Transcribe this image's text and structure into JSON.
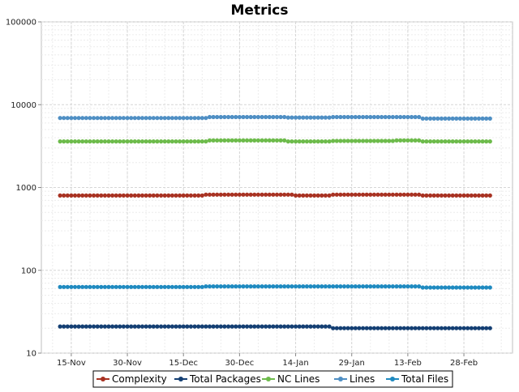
{
  "chart_data": {
    "type": "line",
    "title": "Metrics",
    "xlabel": "",
    "ylabel": "",
    "y_scale": "log",
    "ylim": [
      10,
      100000
    ],
    "y_ticks": [
      "10",
      "100",
      "1000",
      "10000",
      "100000"
    ],
    "xlim": [
      "2010-11-07",
      "2011-03-13"
    ],
    "x_ticks": [
      {
        "date": "2010-11-15",
        "label": "15-Nov"
      },
      {
        "date": "2010-11-30",
        "label": "30-Nov"
      },
      {
        "date": "2010-12-15",
        "label": "15-Dec"
      },
      {
        "date": "2010-12-30",
        "label": "30-Dec"
      },
      {
        "date": "2011-01-14",
        "label": "14-Jan"
      },
      {
        "date": "2011-01-29",
        "label": "29-Jan"
      },
      {
        "date": "2011-02-13",
        "label": "13-Feb"
      },
      {
        "date": "2011-02-28",
        "label": "28-Feb"
      }
    ],
    "grid": true,
    "legend_position": "bottom",
    "series": [
      {
        "name": "Complexity",
        "color": "#a83222",
        "points": [
          [
            "2010-11-12",
            800
          ],
          [
            "2010-12-15",
            800
          ],
          [
            "2010-12-21",
            820
          ],
          [
            "2011-01-14",
            800
          ],
          [
            "2011-01-24",
            820
          ],
          [
            "2011-02-10",
            820
          ],
          [
            "2011-02-17",
            800
          ],
          [
            "2011-03-07",
            800
          ]
        ]
      },
      {
        "name": "Total Packages",
        "color": "#143f73",
        "points": [
          [
            "2010-11-12",
            21
          ],
          [
            "2011-01-22",
            21
          ],
          [
            "2011-01-24",
            20
          ],
          [
            "2011-03-07",
            20
          ]
        ]
      },
      {
        "name": "NC Lines",
        "color": "#6dbb4b",
        "points": [
          [
            "2010-11-12",
            3600
          ],
          [
            "2010-12-15",
            3600
          ],
          [
            "2010-12-22",
            3700
          ],
          [
            "2011-01-12",
            3600
          ],
          [
            "2011-01-24",
            3650
          ],
          [
            "2011-02-10",
            3700
          ],
          [
            "2011-02-17",
            3600
          ],
          [
            "2011-03-07",
            3600
          ]
        ]
      },
      {
        "name": "Lines",
        "color": "#4f8fc4",
        "points": [
          [
            "2010-11-12",
            6900
          ],
          [
            "2010-12-15",
            6900
          ],
          [
            "2010-12-22",
            7100
          ],
          [
            "2011-01-12",
            7000
          ],
          [
            "2011-01-24",
            7100
          ],
          [
            "2011-02-10",
            7100
          ],
          [
            "2011-02-17",
            6800
          ],
          [
            "2011-03-07",
            6800
          ]
        ]
      },
      {
        "name": "Total Files",
        "color": "#1f8ac0",
        "points": [
          [
            "2010-11-12",
            63
          ],
          [
            "2010-12-15",
            63
          ],
          [
            "2010-12-21",
            64
          ],
          [
            "2011-02-12",
            64
          ],
          [
            "2011-02-17",
            62
          ],
          [
            "2011-03-07",
            62
          ]
        ]
      }
    ]
  }
}
